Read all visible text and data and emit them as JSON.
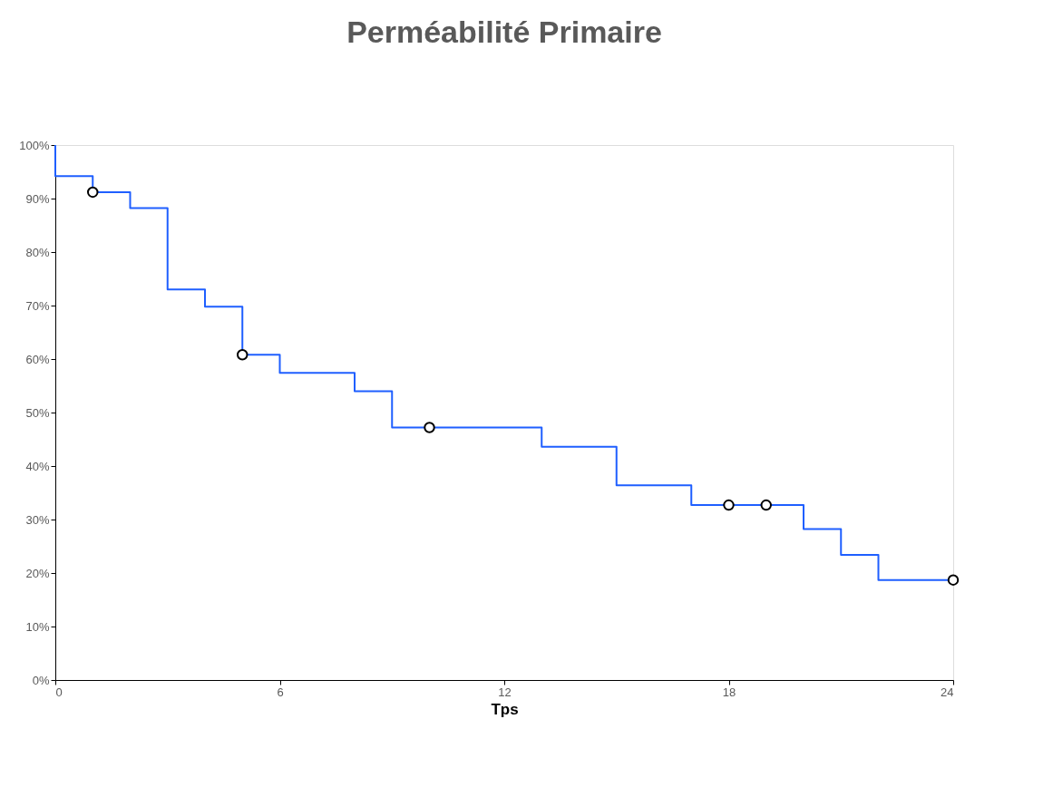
{
  "chart_data": {
    "type": "line",
    "title": "Perméabilité Primaire",
    "xlabel": "Tps",
    "xlim": [
      0,
      24
    ],
    "xticks": [
      0,
      6,
      12,
      18,
      24
    ],
    "ylim": [
      0,
      100
    ],
    "yticks": [
      {
        "value": 0,
        "label": "0%"
      },
      {
        "value": 10,
        "label": "10%"
      },
      {
        "value": 20,
        "label": "20%"
      },
      {
        "value": 30,
        "label": "30%"
      },
      {
        "value": 40,
        "label": "40%"
      },
      {
        "value": 50,
        "label": "50%"
      },
      {
        "value": 60,
        "label": "60%"
      },
      {
        "value": 70,
        "label": "70%"
      },
      {
        "value": 80,
        "label": "80%"
      },
      {
        "value": 90,
        "label": "90%"
      },
      {
        "value": 100,
        "label": "100%"
      }
    ],
    "grid": false,
    "series": [
      {
        "type": "step",
        "color": "#1f5fff",
        "marker": "none",
        "line_style": "solid",
        "x": [
          0,
          0,
          1,
          2,
          3,
          4,
          5,
          6,
          8,
          9,
          13,
          15,
          17,
          20,
          21,
          22,
          24
        ],
        "values": [
          100,
          94.2,
          91.2,
          88.2,
          73,
          69.8,
          60.8,
          57.4,
          54,
          47.2,
          43.6,
          36.4,
          32.7,
          28.2,
          23.4,
          18.7,
          18.7
        ]
      },
      {
        "type": "scatter",
        "color": "#ffffff",
        "marker": "circle",
        "x": [
          1,
          5,
          10,
          18,
          19,
          24
        ],
        "values": [
          91.2,
          60.8,
          47.2,
          32.7,
          32.7,
          18.7
        ]
      }
    ]
  }
}
